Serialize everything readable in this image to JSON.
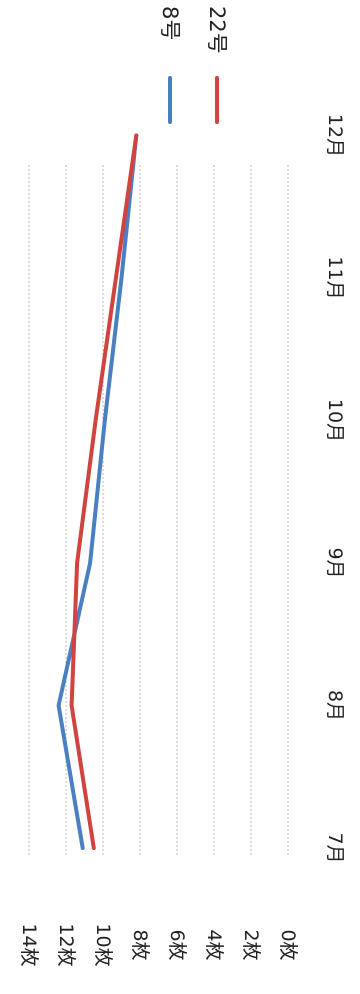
{
  "chart_data": {
    "type": "line",
    "orientation": "rotated-90-clockwise",
    "categories": [
      "7月",
      "8月",
      "9月",
      "10月",
      "11月",
      "12月"
    ],
    "series": [
      {
        "name": "8号",
        "color": "#4a7fc1",
        "values": [
          11.1,
          12.4,
          10.7,
          9.9,
          9.0,
          8.2
        ]
      },
      {
        "name": "22号",
        "color": "#d0433f",
        "values": [
          10.5,
          11.7,
          11.4,
          10.4,
          9.3,
          8.2
        ]
      }
    ],
    "y_ticks": [
      "0枚",
      "2枚",
      "4枚",
      "6枚",
      "8枚",
      "10枚",
      "12枚",
      "14枚"
    ],
    "ylim": [
      0,
      14
    ],
    "grid": true,
    "legend_position": "top-right"
  }
}
